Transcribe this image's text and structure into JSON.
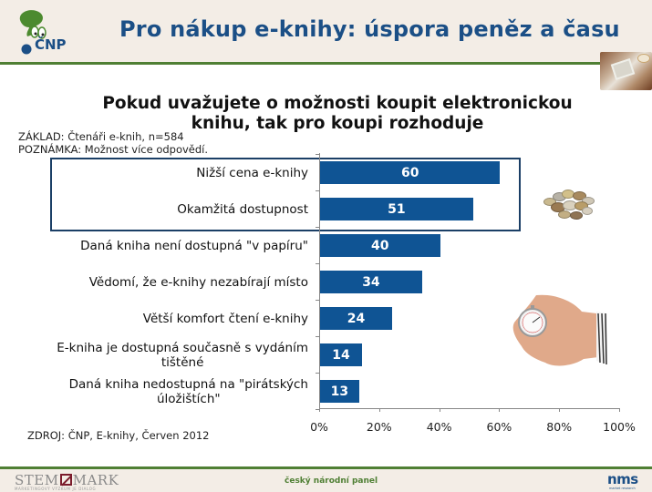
{
  "header": {
    "logo_text": "ČNP",
    "title": "Pro nákup e-knihy: úspora peněz a času"
  },
  "chart_data": {
    "type": "bar",
    "orientation": "horizontal",
    "title": "Pokud uvažujete o možnosti koupit elektronickou knihu, tak pro koupi rozhoduje",
    "title_lines": [
      "Pokud uvažujete o možnosti koupit elektronickou",
      "knihu, tak pro koupi rozhoduje"
    ],
    "categories": [
      "Nižší cena e-knihy",
      "Okamžitá dostupnost",
      "Daná kniha není dostupná \"v papíru\"",
      "Vědomí, že e-knihy nezabírají místo",
      "Větší komfort čtení e-knihy",
      "E-kniha je dostupná současně s vydáním tištěné",
      "Daná kniha nedostupná na \"pirátských úložištích\""
    ],
    "category_lines": [
      [
        "Nižší cena e-knihy"
      ],
      [
        "Okamžitá dostupnost"
      ],
      [
        "Daná kniha není dostupná \"v papíru\""
      ],
      [
        "Vědomí, že e-knihy nezabírají místo"
      ],
      [
        "Větší komfort čtení e-knihy"
      ],
      [
        "E-kniha je dostupná současně s vydáním",
        "tištěné"
      ],
      [
        "Daná kniha nedostupná na \"pirátských",
        "úložištích\""
      ]
    ],
    "values": [
      60,
      51,
      40,
      34,
      24,
      14,
      13
    ],
    "xlabel": "",
    "ylabel": "",
    "xlim": [
      0,
      100
    ],
    "x_ticks": [
      "0%",
      "20%",
      "40%",
      "60%",
      "80%",
      "100%"
    ],
    "grid": false,
    "legend": null,
    "highlighted_categories": [
      "Nižší cena e-knihy",
      "Okamžitá dostupnost"
    ],
    "bar_color": "#0f5494"
  },
  "notes": {
    "base": "ZÁKLAD: Čtenáři e-knih, n=584",
    "note": "POZNÁMKA: Možnost více odpovědí.",
    "source": "ZDROJ: ČNP, E-knihy, Červen 2012"
  },
  "footer": {
    "left_brand_a": "STEM",
    "left_brand_b": "MARK",
    "left_brand_sub": "MARKETINGOVÝ VÝZKUM JE DIALOG",
    "center": "český národní panel",
    "right_brand": "nms",
    "right_brand_sub": "market research"
  },
  "colors": {
    "title": "#1b4f86",
    "accent_green": "#4f7f34",
    "bar": "#0f5494",
    "header_bg": "#f3ede6"
  }
}
